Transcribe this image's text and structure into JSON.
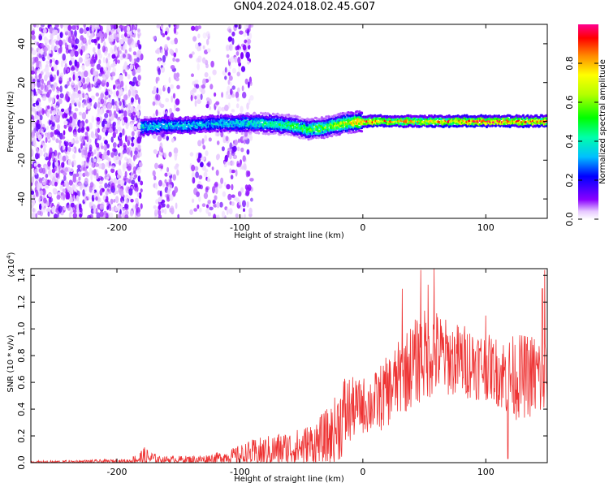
{
  "title": "GN04.2024.018.02.45.G07",
  "chart_data": [
    {
      "type": "heatmap",
      "name": "spectrogram",
      "xlabel": "Height of straight line (km)",
      "ylabel": "Frequency (Hz)",
      "xlim": [
        -270,
        150
      ],
      "ylim": [
        -50,
        50
      ],
      "xticks": [
        -200,
        -100,
        0,
        100
      ],
      "yticks": [
        -40,
        -20,
        0,
        20,
        40
      ],
      "ridge": [
        {
          "x": -180,
          "y": -3,
          "amp": 0.4
        },
        {
          "x": -160,
          "y": -2,
          "amp": 0.35
        },
        {
          "x": -140,
          "y": -2,
          "amp": 0.35
        },
        {
          "x": -120,
          "y": -1,
          "amp": 0.35
        },
        {
          "x": -100,
          "y": -1,
          "amp": 0.4
        },
        {
          "x": -80,
          "y": -1,
          "amp": 0.45
        },
        {
          "x": -60,
          "y": -2,
          "amp": 0.5
        },
        {
          "x": -45,
          "y": -4,
          "amp": 0.55
        },
        {
          "x": -30,
          "y": -3,
          "amp": 0.6
        },
        {
          "x": -15,
          "y": -1,
          "amp": 0.7
        },
        {
          "x": 0,
          "y": 0,
          "amp": 0.85
        },
        {
          "x": 20,
          "y": 0,
          "amp": 0.85
        },
        {
          "x": 40,
          "y": 0,
          "amp": 0.75
        },
        {
          "x": 60,
          "y": 0,
          "amp": 0.8
        },
        {
          "x": 80,
          "y": 0,
          "amp": 0.9
        },
        {
          "x": 100,
          "y": 0,
          "amp": 0.9
        },
        {
          "x": 120,
          "y": 0,
          "amp": 0.85
        },
        {
          "x": 150,
          "y": 0,
          "amp": 0.85
        }
      ],
      "noise_regions": [
        {
          "x": [
            -270,
            -180
          ],
          "y": [
            -50,
            50
          ],
          "density": 0.9
        },
        {
          "x": [
            -170,
            -150
          ],
          "y": [
            -50,
            50
          ],
          "density": 0.5
        },
        {
          "x": [
            -140,
            -125
          ],
          "y": [
            -50,
            50
          ],
          "density": 0.35
        },
        {
          "x": [
            -125,
            -90
          ],
          "y": [
            -50,
            30
          ],
          "density": 0.35
        },
        {
          "x": [
            -110,
            -90
          ],
          "y": [
            30,
            50
          ],
          "density": 0.7
        }
      ],
      "colorbar": {
        "label": "Normalized spectral amplitude",
        "range": [
          0,
          1
        ],
        "ticks": [
          0.0,
          0.2,
          0.4,
          0.6,
          0.8
        ],
        "tick_labels": [
          "0.0",
          "0.2",
          "0.4",
          "0.6",
          "0.8"
        ]
      }
    },
    {
      "type": "line",
      "name": "snr",
      "xlabel": "Height of straight line (km)",
      "ylabel": "SNR (10 * v/v)",
      "yscale_label": "(x10",
      "yscale_exp": "4",
      "yscale_close": ")",
      "xlim": [
        -270,
        150
      ],
      "ylim": [
        0,
        1.45
      ],
      "xticks": [
        -200,
        -100,
        0,
        100
      ],
      "yticks": [
        0.0,
        0.2,
        0.4,
        0.6,
        0.8,
        1.0,
        1.2,
        1.4
      ],
      "ytick_labels": [
        "0.0",
        "0.2",
        "0.4",
        "0.6",
        "0.8",
        "1.0",
        "1.2",
        "1.4"
      ],
      "color": "#ee3333",
      "envelope": [
        {
          "x": -270,
          "base": 0.0,
          "amp": 0.015
        },
        {
          "x": -190,
          "base": 0.01,
          "amp": 0.02
        },
        {
          "x": -178,
          "base": 0.03,
          "amp": 0.1
        },
        {
          "x": -165,
          "base": 0.02,
          "amp": 0.03
        },
        {
          "x": -130,
          "base": 0.02,
          "amp": 0.04
        },
        {
          "x": -110,
          "base": 0.04,
          "amp": 0.06
        },
        {
          "x": -90,
          "base": 0.05,
          "amp": 0.14
        },
        {
          "x": -70,
          "base": 0.08,
          "amp": 0.16
        },
        {
          "x": -50,
          "base": 0.1,
          "amp": 0.18
        },
        {
          "x": -35,
          "base": 0.13,
          "amp": 0.25
        },
        {
          "x": -25,
          "base": 0.18,
          "amp": 0.3
        },
        {
          "x": -15,
          "base": 0.33,
          "amp": 0.4
        },
        {
          "x": -5,
          "base": 0.4,
          "amp": 0.25
        },
        {
          "x": 10,
          "base": 0.42,
          "amp": 0.3
        },
        {
          "x": 25,
          "base": 0.55,
          "amp": 0.35
        },
        {
          "x": 40,
          "base": 0.7,
          "amp": 0.4
        },
        {
          "x": 55,
          "base": 0.8,
          "amp": 0.45
        },
        {
          "x": 70,
          "base": 0.75,
          "amp": 0.35
        },
        {
          "x": 90,
          "base": 0.72,
          "amp": 0.35
        },
        {
          "x": 105,
          "base": 0.68,
          "amp": 0.3
        },
        {
          "x": 120,
          "base": 0.6,
          "amp": 0.4
        },
        {
          "x": 135,
          "base": 0.62,
          "amp": 0.4
        },
        {
          "x": 150,
          "base": 0.6,
          "amp": 0.45
        }
      ],
      "peaks": [
        {
          "x": 32,
          "y": 1.3
        },
        {
          "x": 47,
          "y": 1.44
        },
        {
          "x": 53,
          "y": 1.33
        },
        {
          "x": 58,
          "y": 1.45
        },
        {
          "x": 100,
          "y": 1.1
        },
        {
          "x": 146,
          "y": 1.3
        },
        {
          "x": 148,
          "y": 1.44
        },
        {
          "x": 118,
          "y": 0.03
        }
      ]
    }
  ]
}
